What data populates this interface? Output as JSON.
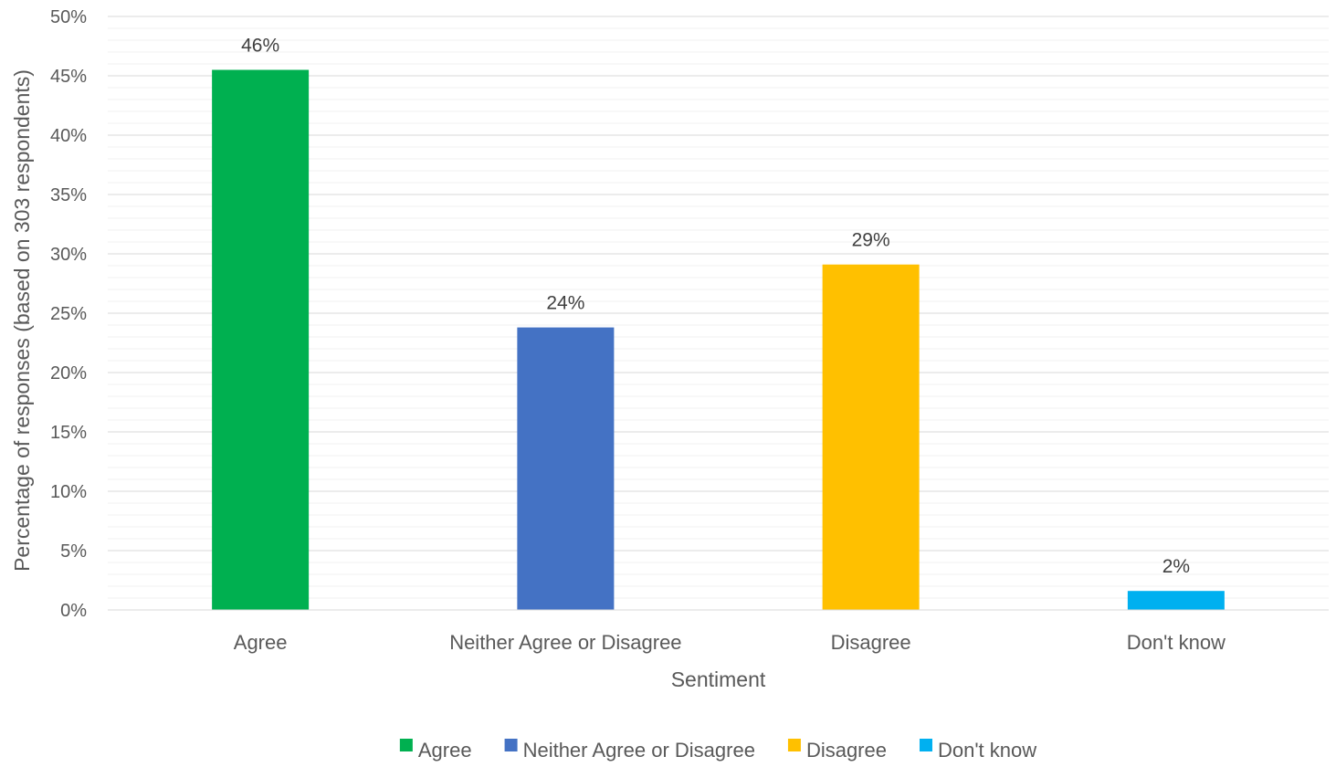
{
  "chart_data": {
    "type": "bar",
    "title": "",
    "xlabel": "Sentiment",
    "ylabel": "Percentage of responses (based on 303 respondents)",
    "categories": [
      "Agree",
      "Neither Agree or Disagree",
      "Disagree",
      "Don't know"
    ],
    "values": [
      45.5,
      23.8,
      29.1,
      1.6
    ],
    "data_labels": [
      "46%",
      "24%",
      "29%",
      "2%"
    ],
    "colors": [
      "#00B050",
      "#4472C4",
      "#FFC000",
      "#00B0F0"
    ],
    "ylim": [
      0,
      50
    ],
    "y_ticks": [
      0,
      5,
      10,
      15,
      20,
      25,
      30,
      35,
      40,
      45,
      50
    ],
    "y_tick_labels": [
      "0%",
      "5%",
      "10%",
      "15%",
      "20%",
      "25%",
      "30%",
      "35%",
      "40%",
      "45%",
      "50%"
    ],
    "grid": true,
    "legend": {
      "position": "bottom",
      "entries": [
        "Agree",
        "Neither Agree or Disagree",
        "Disagree",
        "Don't know"
      ]
    }
  }
}
